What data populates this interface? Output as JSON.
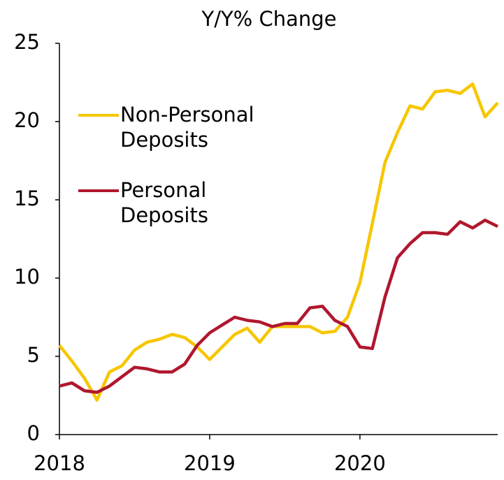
{
  "chart_data": {
    "type": "line",
    "title": "Y/Y% Change",
    "x": [
      2018,
      2018.083,
      2018.167,
      2018.25,
      2018.333,
      2018.417,
      2018.5,
      2018.583,
      2018.667,
      2018.75,
      2018.833,
      2018.917,
      2019,
      2019.083,
      2019.167,
      2019.25,
      2019.333,
      2019.417,
      2019.5,
      2019.583,
      2019.667,
      2019.75,
      2019.833,
      2019.917,
      2020,
      2020.083,
      2020.167,
      2020.25,
      2020.333,
      2020.417,
      2020.5,
      2020.583,
      2020.667,
      2020.75,
      2020.833,
      2020.917
    ],
    "series": [
      {
        "name": "Non-Personal Deposits",
        "color": "#f7c600",
        "values": [
          5.7,
          4.7,
          3.6,
          2.2,
          4.0,
          4.4,
          5.4,
          5.9,
          6.1,
          6.4,
          6.2,
          5.6,
          4.8,
          5.6,
          6.4,
          6.8,
          5.9,
          6.9,
          6.9,
          6.9,
          6.9,
          6.5,
          6.6,
          7.5,
          9.7,
          13.5,
          17.4,
          19.3,
          21.0,
          20.8,
          21.9,
          22.0,
          21.8,
          22.4,
          20.3,
          21.2
        ]
      },
      {
        "name": "Personal Deposits",
        "color": "#b0172e",
        "values": [
          3.1,
          3.3,
          2.8,
          2.7,
          3.1,
          3.7,
          4.3,
          4.2,
          4.0,
          4.0,
          4.5,
          5.7,
          6.5,
          7.0,
          7.5,
          7.3,
          7.2,
          6.9,
          7.1,
          7.1,
          8.1,
          8.2,
          7.3,
          6.9,
          5.6,
          5.5,
          8.8,
          11.3,
          12.2,
          12.9,
          12.9,
          12.8,
          13.6,
          13.2,
          13.7,
          13.3
        ]
      }
    ],
    "xlim": [
      2018,
      2020.917
    ],
    "xticks": [
      2018,
      2019,
      2020
    ],
    "ylim": [
      0,
      25
    ],
    "yticks": [
      0,
      5,
      10,
      15,
      20,
      25
    ],
    "grid": false
  }
}
